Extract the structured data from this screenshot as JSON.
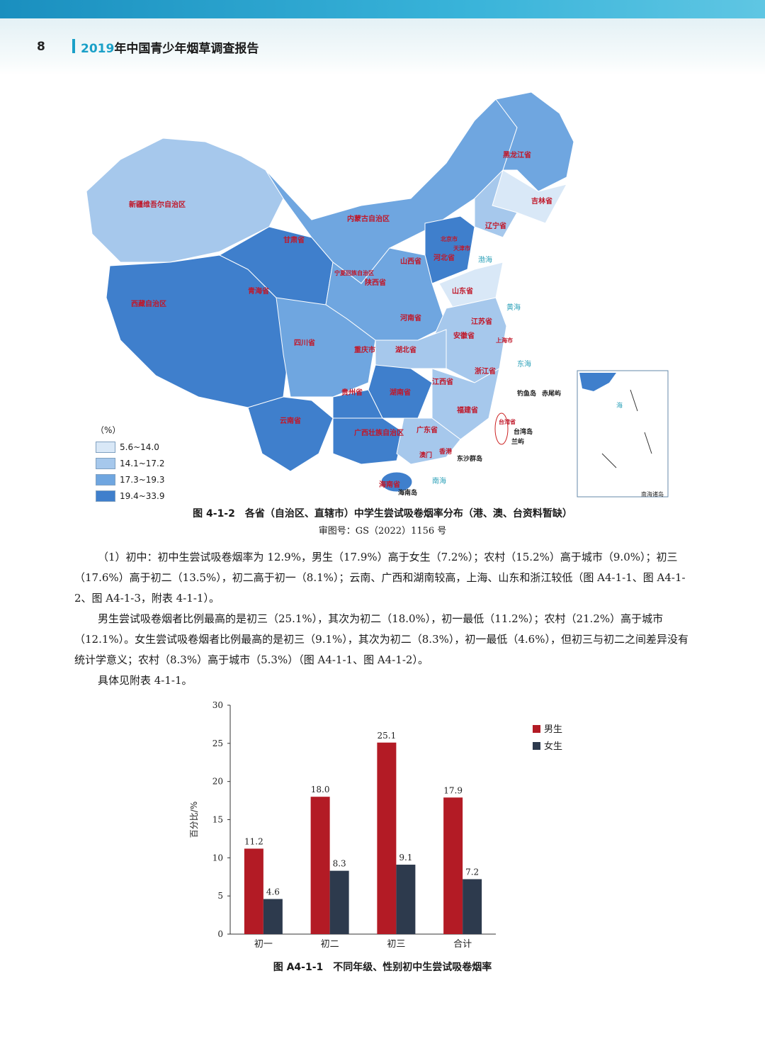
{
  "header": {
    "page_number": "8",
    "year": "2019",
    "title_rest": "年中国青少年烟草调查报告"
  },
  "map": {
    "legend_unit": "（%）",
    "legend": [
      {
        "range": "5.6~14.0",
        "color": "#d9e8f7"
      },
      {
        "range": "14.1~17.2",
        "color": "#a6c8ec"
      },
      {
        "range": "17.3~19.3",
        "color": "#6fa6e0"
      },
      {
        "range": "19.4~33.9",
        "color": "#3f7fcc"
      }
    ],
    "region_labels": [
      "新疆维吾尔自治区",
      "西藏自治区",
      "青海省",
      "甘肃省",
      "内蒙古自治区",
      "黑龙江省",
      "吉林省",
      "辽宁省",
      "河北省",
      "北京市",
      "天津市",
      "山西省",
      "陕西省",
      "宁夏回族自治区",
      "山东省",
      "河南省",
      "江苏省",
      "安徽省",
      "上海市",
      "湖北省",
      "重庆市",
      "四川省",
      "浙江省",
      "江西省",
      "湖南省",
      "贵州省",
      "云南省",
      "福建省",
      "台湾省",
      "广西壮族自治区",
      "广东省",
      "海南省",
      "香港",
      "澳门"
    ],
    "sea_labels": [
      "渤海",
      "黄海",
      "东海",
      "南海"
    ],
    "island_labels": [
      "钓鱼岛",
      "赤尾屿",
      "台湾岛",
      "兰屿",
      "东沙群岛",
      "海南岛"
    ],
    "inset_title": "南海诸岛",
    "inset_sea": "海"
  },
  "figure_map": {
    "caption": "图 4-1-2　各省（自治区、直辖市）中学生尝试吸卷烟率分布（港、澳、台资料暂缺）",
    "approval": "审图号：GS（2022）1156 号"
  },
  "body": {
    "p1": "（1）初中：初中生尝试吸卷烟率为 12.9%，男生（17.9%）高于女生（7.2%）；农村（15.2%）高于城市（9.0%）；初三（17.6%）高于初二（13.5%），初二高于初一（8.1%）；云南、广西和湖南较高，上海、山东和浙江较低（图 A4-1-1、图 A4-1-2、图 A4-1-3，附表 4-1-1）。",
    "p2": "男生尝试吸卷烟者比例最高的是初三（25.1%），其次为初二（18.0%），初一最低（11.2%）；农村（21.2%）高于城市（12.1%）。女生尝试吸卷烟者比例最高的是初三（9.1%），其次为初二（8.3%），初一最低（4.6%），但初三与初二之间差异没有统计学意义；农村（8.3%）高于城市（5.3%）（图 A4-1-1、图 A4-1-2）。",
    "p3": "具体见附表 4-1-1。"
  },
  "chart_data": {
    "type": "bar",
    "categories": [
      "初一",
      "初二",
      "初三",
      "合计"
    ],
    "series": [
      {
        "name": "男生",
        "values": [
          11.2,
          18.0,
          25.1,
          17.9
        ],
        "color": "#b31b25"
      },
      {
        "name": "女生",
        "values": [
          4.6,
          8.3,
          9.1,
          7.2
        ],
        "color": "#2d3a4d"
      }
    ],
    "ylabel": "百分比/%",
    "ylim": [
      0,
      30
    ],
    "yticks": [
      "0",
      "5",
      "10",
      "15",
      "20",
      "25",
      "30"
    ],
    "legend_position": "top-right",
    "grid": false,
    "caption": "图 A4-1-1　不同年级、性别初中生尝试吸卷烟率"
  }
}
